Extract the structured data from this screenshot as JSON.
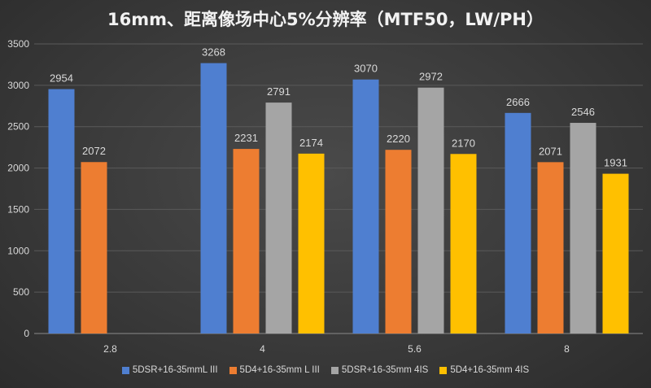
{
  "chart_data": {
    "type": "bar",
    "title": "16mm、距离像场中心5%分辨率（MTF50，LW/PH）",
    "categories": [
      "2.8",
      "4",
      "5.6",
      "8"
    ],
    "series": [
      {
        "name": "5DSR+16-35mmL III",
        "color": "#4f7fd0",
        "values": [
          2954,
          3268,
          3070,
          2666
        ]
      },
      {
        "name": "5D4+16-35mm L III",
        "color": "#ed7d31",
        "values": [
          2072,
          2231,
          2220,
          2071
        ]
      },
      {
        "name": "5DSR+16-35mm 4IS",
        "color": "#a5a5a5",
        "values": [
          null,
          2791,
          2972,
          2546
        ]
      },
      {
        "name": "5D4+16-35mm 4IS",
        "color": "#ffc000",
        "values": [
          null,
          2174,
          2170,
          1931
        ]
      }
    ],
    "ylim": [
      0,
      3500
    ],
    "yticks": [
      0,
      500,
      1000,
      1500,
      2000,
      2500,
      3000,
      3500
    ],
    "grid": true,
    "legend": "bottom",
    "xlabel": "",
    "ylabel": ""
  }
}
